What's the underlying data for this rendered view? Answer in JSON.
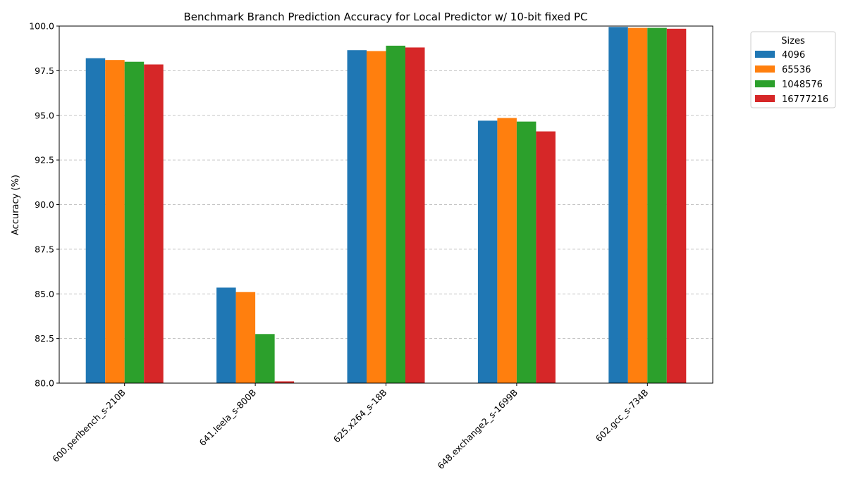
{
  "chart_data": {
    "type": "bar",
    "title": "Benchmark Branch Prediction Accuracy for Local Predictor w/ 10-bit fixed PC",
    "xlabel": "",
    "ylabel": "Accuracy (%)",
    "ylim": [
      80.0,
      100.0
    ],
    "yticks": [
      "80.0",
      "82.5",
      "85.0",
      "87.5",
      "90.0",
      "92.5",
      "95.0",
      "97.5",
      "100.0"
    ],
    "ytick_values": [
      80.0,
      82.5,
      85.0,
      87.5,
      90.0,
      92.5,
      95.0,
      97.5,
      100.0
    ],
    "grid": "y-dashed",
    "legend": {
      "title": "Sizes",
      "placement": "outside-top-right"
    },
    "categories": [
      "600.perlbench_s-210B",
      "641.leela_s-800B",
      "625.x264_s-18B",
      "648.exchange2_s-1699B",
      "602.gcc_s-734B"
    ],
    "series": [
      {
        "name": "4096",
        "color": "#1f77b4",
        "values": [
          98.2,
          85.35,
          98.65,
          94.7,
          99.95
        ]
      },
      {
        "name": "65536",
        "color": "#ff7f0e",
        "values": [
          98.1,
          85.1,
          98.6,
          94.85,
          99.9
        ]
      },
      {
        "name": "1048576",
        "color": "#2ca02c",
        "values": [
          98.0,
          82.75,
          98.9,
          94.65,
          99.9
        ]
      },
      {
        "name": "16777216",
        "color": "#d62728",
        "values": [
          97.85,
          80.1,
          98.8,
          94.1,
          99.85
        ]
      }
    ]
  }
}
